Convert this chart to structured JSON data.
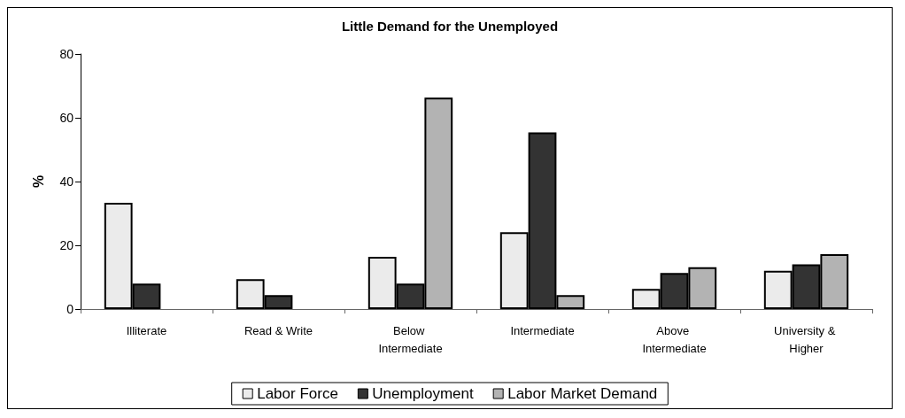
{
  "chart_data": {
    "type": "bar",
    "title": "Little Demand for the Unemployed",
    "ylabel": "%",
    "categories": [
      "Illiterate",
      "Read & Write",
      "Below Intermediate",
      "Intermediate",
      "Above Intermediate",
      "University & Higher"
    ],
    "series": [
      {
        "name": "Labor Force",
        "color": "#ebebeb",
        "values": [
          33.3,
          9.4,
          16.4,
          24.1,
          6.3,
          12.0
        ]
      },
      {
        "name": "Unemployment",
        "color": "#333333",
        "values": [
          8.0,
          4.4,
          8.0,
          55.4,
          11.3,
          14.0
        ]
      },
      {
        "name": "Labor Market Demand",
        "color": "#b3b3b3",
        "values": [
          null,
          null,
          66.3,
          4.4,
          13.1,
          17.2
        ]
      }
    ],
    "ylim": [
      0,
      80
    ],
    "yticks": [
      0,
      20,
      40,
      60,
      80
    ],
    "grid": false,
    "legend": "bottom"
  }
}
